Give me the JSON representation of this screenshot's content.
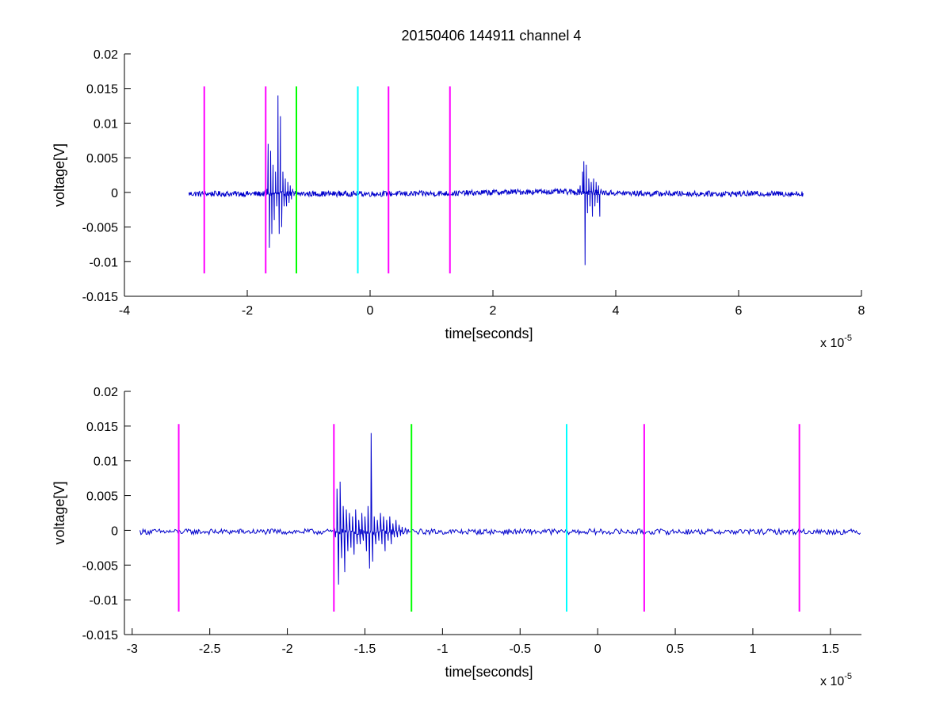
{
  "figure": {
    "title": "20150406 144911 channel 4",
    "background": "#ffffff"
  },
  "chart_data": [
    {
      "type": "line",
      "title": "20150406 144911 channel 4",
      "xlabel": "time[seconds]",
      "ylabel": "voltage[V]",
      "x_multiplier_label": "x 10",
      "x_multiplier_exponent": "-5",
      "xlim": [
        -4,
        8
      ],
      "ylim": [
        -0.015,
        0.02
      ],
      "xticks": [
        -4,
        -2,
        0,
        2,
        4,
        6,
        8
      ],
      "xtick_labels": [
        "-4",
        "-2",
        "0",
        "2",
        "4",
        "6",
        "8"
      ],
      "yticks": [
        -0.015,
        -0.01,
        -0.005,
        0,
        0.005,
        0.01,
        0.015,
        0.02
      ],
      "ytick_labels": [
        "-0.015",
        "-0.01",
        "-0.005",
        "0",
        "0.005",
        "0.01",
        "0.015",
        "0.02"
      ],
      "grid": false,
      "series": [
        {
          "color": "#0000cc",
          "x_range": [
            -2.95,
            7.05
          ],
          "baseline": -0.0002,
          "noise_amplitude": 0.0004,
          "bursts": [
            {
              "x": [
                -1.68,
                -1.66,
                -1.64,
                -1.62,
                -1.6,
                -1.58,
                -1.56,
                -1.54,
                -1.52,
                -1.5,
                -1.48,
                -1.46,
                -1.44,
                -1.42,
                -1.4,
                -1.38,
                -1.36,
                -1.34,
                -1.32,
                -1.3,
                -1.28,
                -1.26,
                -1.24,
                -1.22
              ],
              "y": [
                0.0005,
                0.007,
                -0.008,
                0.006,
                -0.006,
                0.004,
                -0.004,
                0.003,
                -0.002,
                0.014,
                -0.006,
                0.011,
                -0.005,
                0.003,
                -0.002,
                0.002,
                -0.002,
                0.0015,
                -0.0015,
                0.001,
                -0.001,
                0.0005,
                -0.0005,
                0.0002
              ]
            },
            {
              "x": [
                3.38,
                3.42,
                3.46,
                3.48,
                3.5,
                3.52,
                3.54,
                3.56,
                3.58,
                3.6,
                3.62,
                3.64,
                3.66,
                3.68,
                3.7,
                3.72,
                3.74,
                3.76,
                3.78
              ],
              "y": [
                0.0005,
                0.001,
                0.003,
                0.0045,
                -0.0105,
                0.004,
                -0.003,
                0.002,
                -0.002,
                0.0015,
                -0.0035,
                0.002,
                -0.002,
                0.0015,
                -0.0015,
                0.001,
                -0.0035,
                0.0005,
                -0.0002
              ]
            }
          ]
        }
      ],
      "vertical_lines": [
        {
          "x": -2.7,
          "y_range": [
            -0.0117,
            0.0153
          ],
          "color": "#ff00ff"
        },
        {
          "x": -1.7,
          "y_range": [
            -0.0117,
            0.0153
          ],
          "color": "#ff00ff"
        },
        {
          "x": -1.2,
          "y_range": [
            -0.0117,
            0.0153
          ],
          "color": "#00ff00"
        },
        {
          "x": -0.2,
          "y_range": [
            -0.0117,
            0.0153
          ],
          "color": "#00ffff"
        },
        {
          "x": 0.3,
          "y_range": [
            -0.0117,
            0.0153
          ],
          "color": "#ff00ff"
        },
        {
          "x": 1.3,
          "y_range": [
            -0.0117,
            0.0153
          ],
          "color": "#ff00ff"
        }
      ]
    },
    {
      "type": "line",
      "title": "",
      "xlabel": "time[seconds]",
      "ylabel": "voltage[V]",
      "x_multiplier_label": "x 10",
      "x_multiplier_exponent": "-5",
      "xlim": [
        -3.05,
        1.7
      ],
      "ylim": [
        -0.015,
        0.02
      ],
      "xticks": [
        -3,
        -2.5,
        -2,
        -1.5,
        -1,
        -0.5,
        0,
        0.5,
        1,
        1.5
      ],
      "xtick_labels": [
        "-3",
        "-2.5",
        "-2",
        "-1.5",
        "-1",
        "-0.5",
        "0",
        "0.5",
        "1",
        "1.5"
      ],
      "yticks": [
        -0.015,
        -0.01,
        -0.005,
        0,
        0.005,
        0.01,
        0.015,
        0.02
      ],
      "ytick_labels": [
        "-0.015",
        "-0.01",
        "-0.005",
        "0",
        "0.005",
        "0.01",
        "0.015",
        "0.02"
      ],
      "grid": false,
      "series": [
        {
          "color": "#0000cc",
          "x_range": [
            -2.95,
            1.7
          ],
          "baseline": -0.0002,
          "noise_amplitude": 0.0004,
          "bursts": [
            {
              "x": [
                -1.7,
                -1.69,
                -1.68,
                -1.67,
                -1.66,
                -1.65,
                -1.64,
                -1.63,
                -1.62,
                -1.61,
                -1.6,
                -1.59,
                -1.58,
                -1.57,
                -1.56,
                -1.55,
                -1.54,
                -1.53,
                -1.52,
                -1.51,
                -1.5,
                -1.49,
                -1.48,
                -1.47,
                -1.46,
                -1.45,
                -1.44,
                -1.43,
                -1.42,
                -1.41,
                -1.4,
                -1.39,
                -1.38,
                -1.37,
                -1.36,
                -1.35,
                -1.34,
                -1.33,
                -1.32,
                -1.31,
                -1.3,
                -1.29,
                -1.28,
                -1.27,
                -1.26,
                -1.25,
                -1.24,
                -1.23,
                -1.22,
                -1.21
              ],
              "y": [
                0.0005,
                -0.001,
                0.006,
                -0.0078,
                0.007,
                -0.004,
                0.0035,
                -0.006,
                0.003,
                -0.003,
                0.0025,
                -0.0025,
                0.002,
                -0.0035,
                0.003,
                -0.002,
                0.0015,
                -0.002,
                0.0025,
                -0.0015,
                0.002,
                -0.003,
                0.0035,
                -0.0055,
                0.014,
                -0.0045,
                0.002,
                -0.002,
                0.0015,
                -0.0015,
                0.0025,
                -0.002,
                0.002,
                -0.003,
                0.0015,
                -0.0015,
                0.002,
                -0.002,
                0.001,
                -0.001,
                0.0015,
                -0.001,
                0.0008,
                -0.0008,
                0.0005,
                -0.0005,
                0.0003,
                -0.0003,
                0.0001,
                -0.0002
              ]
            }
          ]
        }
      ],
      "vertical_lines": [
        {
          "x": -2.7,
          "y_range": [
            -0.0117,
            0.0153
          ],
          "color": "#ff00ff"
        },
        {
          "x": -1.7,
          "y_range": [
            -0.0117,
            0.0153
          ],
          "color": "#ff00ff"
        },
        {
          "x": -1.2,
          "y_range": [
            -0.0117,
            0.0153
          ],
          "color": "#00ff00"
        },
        {
          "x": -0.2,
          "y_range": [
            -0.0117,
            0.0153
          ],
          "color": "#00ffff"
        },
        {
          "x": 0.3,
          "y_range": [
            -0.0117,
            0.0153
          ],
          "color": "#ff00ff"
        },
        {
          "x": 1.3,
          "y_range": [
            -0.0117,
            0.0153
          ],
          "color": "#ff00ff"
        }
      ]
    }
  ]
}
